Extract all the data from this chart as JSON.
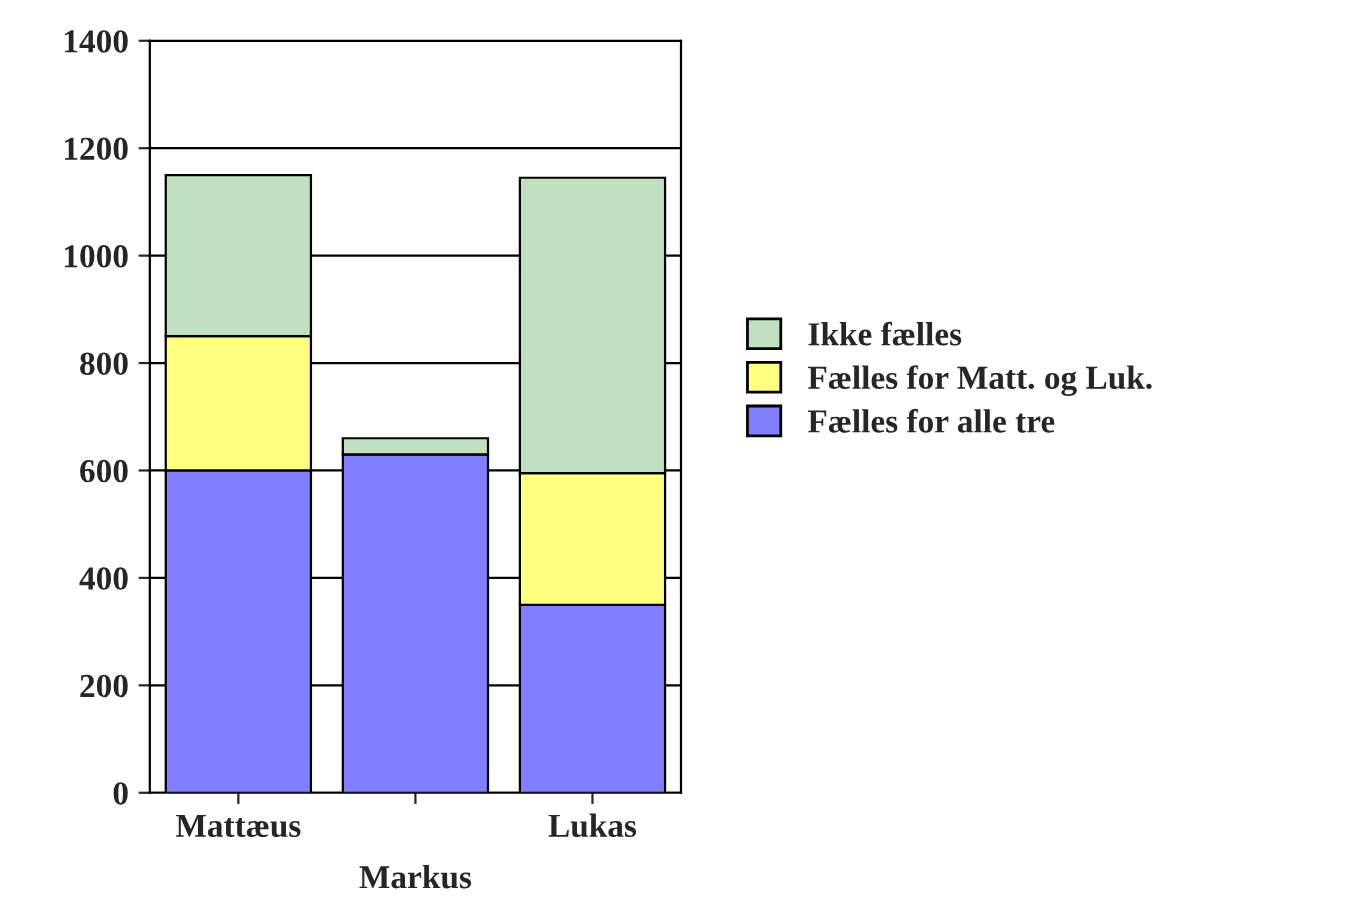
{
  "chart_data": {
    "type": "bar",
    "stacked": true,
    "categories": [
      "Mattæus",
      "Markus",
      "Lukas"
    ],
    "series": [
      {
        "name": "Fælles for alle tre",
        "color": "#8080ff",
        "values": [
          600,
          630,
          350
        ]
      },
      {
        "name": "Fælles for Matt. og Luk.",
        "color": "#ffff80",
        "values": [
          250,
          0,
          245
        ]
      },
      {
        "name": "Ikke fælles",
        "color": "#c0e0c0",
        "values": [
          300,
          30,
          550
        ]
      }
    ],
    "ylim": [
      0,
      1400
    ],
    "yticks": [
      0,
      200,
      400,
      600,
      800,
      1000,
      1200,
      1400
    ],
    "grid": "y",
    "legend": "right"
  }
}
